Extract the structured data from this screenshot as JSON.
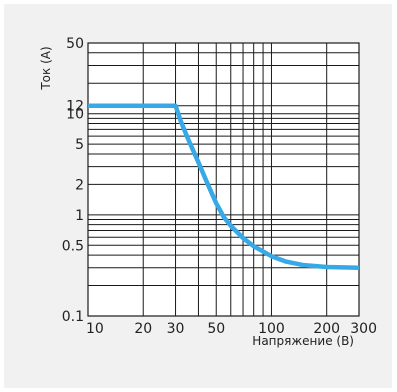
{
  "chart_data": {
    "type": "line",
    "x_scale": "log",
    "y_scale": "log",
    "xlim": [
      10,
      300
    ],
    "ylim": [
      0.1,
      50
    ],
    "xlabel": "Напряжение (В)",
    "ylabel": "Ток (А)",
    "x_ticks": [
      10,
      20,
      30,
      50,
      100,
      200,
      300
    ],
    "x_tick_labels": [
      "10",
      "20",
      "30",
      "50",
      "100",
      "200",
      "300"
    ],
    "x_minor_gridlines": [
      40,
      60,
      70,
      80,
      90
    ],
    "y_ticks": [
      0.1,
      0.5,
      1,
      2,
      5,
      10,
      12,
      50
    ],
    "y_tick_labels": [
      "0.1",
      "0.5",
      "1",
      "2",
      "5",
      "10",
      "12",
      "50"
    ],
    "y_minor_gridlines": [
      0.2,
      0.3,
      0.4,
      0.6,
      0.7,
      0.8,
      0.9,
      3,
      4,
      6,
      7,
      8,
      9,
      20,
      30,
      40
    ],
    "grid": true,
    "series": [
      {
        "color": "#36a9e6",
        "points": [
          [
            10,
            12
          ],
          [
            30,
            12
          ],
          [
            32,
            8.5
          ],
          [
            35,
            5.7
          ],
          [
            40,
            3.3
          ],
          [
            45,
            2.0
          ],
          [
            50,
            1.3
          ],
          [
            55,
            0.95
          ],
          [
            60,
            0.78
          ],
          [
            70,
            0.59
          ],
          [
            80,
            0.49
          ],
          [
            100,
            0.39
          ],
          [
            120,
            0.345
          ],
          [
            150,
            0.318
          ],
          [
            200,
            0.305
          ],
          [
            300,
            0.3
          ]
        ]
      }
    ]
  }
}
